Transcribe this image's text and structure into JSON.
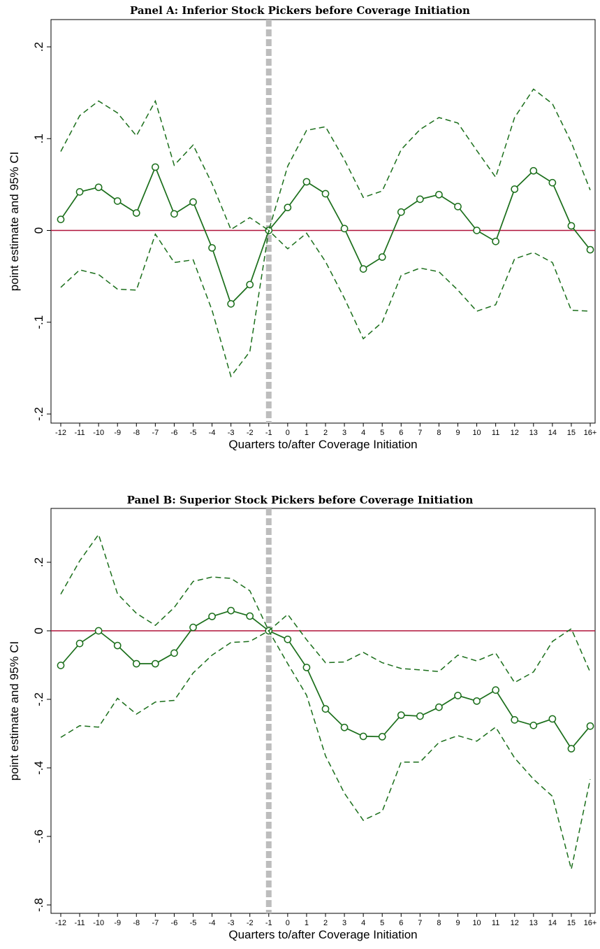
{
  "colors": {
    "series": "#1a6e1a",
    "zero_line": "#b0123a",
    "event_line": "#bdbdbd",
    "frame": "#000000"
  },
  "chart_data": [
    {
      "type": "line",
      "title": "Panel A: Inferior Stock Pickers before Coverage Initiation",
      "xlabel": "Quarters to/after Coverage Initiation",
      "ylabel": "point estimate and 95% CI",
      "categories": [
        "-12",
        "-11",
        "-10",
        "-9",
        "-8",
        "-7",
        "-6",
        "-5",
        "-4",
        "-3",
        "-2",
        "-1",
        "0",
        "1",
        "2",
        "3",
        "4",
        "5",
        "6",
        "7",
        "8",
        "9",
        "10",
        "11",
        "12",
        "13",
        "14",
        "15",
        "16+"
      ],
      "ylim": [
        -0.2,
        0.2
      ],
      "yticks": [
        -0.2,
        -0.1,
        0,
        0.1,
        0.2
      ],
      "ytick_labels": [
        "-.2",
        "-.1",
        "0",
        ".1",
        ".2"
      ],
      "event_category": "-1",
      "reference_y": 0,
      "series": [
        {
          "role": "point_estimate",
          "values": [
            0.012,
            0.042,
            0.047,
            0.032,
            0.019,
            0.069,
            0.018,
            0.031,
            -0.019,
            -0.08,
            -0.059,
            0.0,
            0.025,
            0.053,
            0.04,
            0.002,
            -0.042,
            -0.029,
            0.02,
            0.034,
            0.039,
            0.026,
            0.0,
            -0.012,
            0.045,
            0.065,
            0.052,
            0.005,
            -0.021
          ]
        },
        {
          "role": "ci_upper",
          "values": [
            0.086,
            0.125,
            0.141,
            0.128,
            0.103,
            0.141,
            0.071,
            0.093,
            0.051,
            0.001,
            0.014,
            0.0,
            0.07,
            0.109,
            0.113,
            0.077,
            0.036,
            0.043,
            0.088,
            0.11,
            0.123,
            0.117,
            0.087,
            0.058,
            0.123,
            0.154,
            0.138,
            0.096,
            0.044
          ]
        },
        {
          "role": "ci_lower",
          "values": [
            -0.062,
            -0.043,
            -0.048,
            -0.064,
            -0.065,
            -0.004,
            -0.035,
            -0.032,
            -0.087,
            -0.159,
            -0.132,
            0.0,
            -0.02,
            -0.003,
            -0.034,
            -0.074,
            -0.118,
            -0.1,
            -0.049,
            -0.041,
            -0.045,
            -0.065,
            -0.088,
            -0.081,
            -0.031,
            -0.024,
            -0.035,
            -0.087,
            -0.088
          ]
        }
      ]
    },
    {
      "type": "line",
      "title": "Panel B: Superior Stock Pickers before Coverage Initiation",
      "xlabel": "Quarters to/after Coverage Initiation",
      "ylabel": "point estimate and 95% CI",
      "categories": [
        "-12",
        "-11",
        "-10",
        "-9",
        "-8",
        "-7",
        "-6",
        "-5",
        "-4",
        "-3",
        "-2",
        "-1",
        "0",
        "1",
        "2",
        "3",
        "4",
        "5",
        "6",
        "7",
        "8",
        "9",
        "10",
        "11",
        "12",
        "13",
        "14",
        "15",
        "16+"
      ],
      "ylim": [
        -0.8,
        0.3
      ],
      "yticks": [
        -0.8,
        -0.6,
        -0.4,
        -0.2,
        0,
        0.2
      ],
      "ytick_labels": [
        "-.8",
        "-.6",
        "-.4",
        "-.2",
        "0",
        ".2"
      ],
      "event_category": "-1",
      "reference_y": 0,
      "series": [
        {
          "role": "point_estimate",
          "values": [
            -0.101,
            -0.037,
            0.0,
            -0.043,
            -0.096,
            -0.096,
            -0.065,
            0.01,
            0.042,
            0.059,
            0.043,
            0.0,
            -0.025,
            -0.107,
            -0.228,
            -0.282,
            -0.308,
            -0.309,
            -0.246,
            -0.249,
            -0.223,
            -0.189,
            -0.205,
            -0.173,
            -0.26,
            -0.276,
            -0.257,
            -0.344,
            -0.278
          ]
        },
        {
          "role": "ci_upper",
          "values": [
            0.107,
            0.204,
            0.281,
            0.108,
            0.051,
            0.016,
            0.068,
            0.144,
            0.157,
            0.153,
            0.117,
            0.0,
            0.048,
            -0.026,
            -0.093,
            -0.091,
            -0.063,
            -0.093,
            -0.11,
            -0.114,
            -0.119,
            -0.071,
            -0.088,
            -0.065,
            -0.151,
            -0.12,
            -0.031,
            0.006,
            -0.121
          ]
        },
        {
          "role": "ci_lower",
          "values": [
            -0.311,
            -0.277,
            -0.281,
            -0.197,
            -0.243,
            -0.208,
            -0.203,
            -0.123,
            -0.071,
            -0.034,
            -0.031,
            0.0,
            -0.096,
            -0.188,
            -0.365,
            -0.474,
            -0.553,
            -0.527,
            -0.383,
            -0.383,
            -0.326,
            -0.306,
            -0.322,
            -0.281,
            -0.371,
            -0.433,
            -0.483,
            -0.696,
            -0.433
          ]
        }
      ]
    }
  ]
}
